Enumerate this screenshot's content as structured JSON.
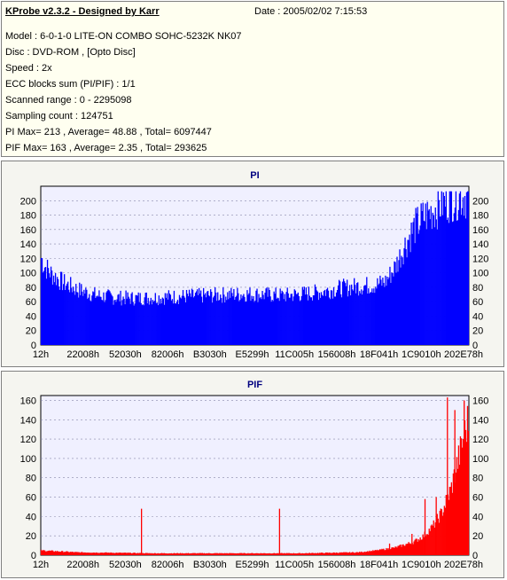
{
  "header": {
    "app_title": "KProbe v2.3.2 - Designed by Karr",
    "date": "Date : 2005/02/02 7:15:53",
    "lines": [
      "Model : 6-0-1-0 LITE-ON COMBO SOHC-5232K NK07",
      "Disc : DVD-ROM ,  [Opto Disc]",
      "Speed : 2x",
      "ECC blocks sum (PI/PIF) : 1/1",
      "Scanned range : 0 - 2295098",
      "Sampling count : 124751",
      "PI Max= 213 , Average= 48.88 , Total= 6097447",
      "PIF Max= 163 , Average= 2.35 , Total= 293625"
    ]
  },
  "chart_data": [
    {
      "type": "area",
      "title": "PI",
      "color": "#0000ff",
      "ylim": [
        0,
        220
      ],
      "yticks": [
        0,
        20,
        40,
        60,
        80,
        100,
        120,
        140,
        160,
        180,
        200
      ],
      "xticks": [
        "12h",
        "22008h",
        "52030h",
        "82006h",
        "B3030h",
        "E5299h",
        "11C005h",
        "156008h",
        "18F041h",
        "1C9010h",
        "202E78h"
      ],
      "xlim": [
        0,
        2295098
      ],
      "profile": [
        [
          0,
          125
        ],
        [
          20000,
          112
        ],
        [
          60000,
          100
        ],
        [
          120000,
          88
        ],
        [
          200000,
          78
        ],
        [
          300000,
          70
        ],
        [
          400000,
          67
        ],
        [
          500000,
          66
        ],
        [
          600000,
          67
        ],
        [
          700000,
          68
        ],
        [
          800000,
          69
        ],
        [
          900000,
          70
        ],
        [
          1000000,
          71
        ],
        [
          1100000,
          72
        ],
        [
          1200000,
          71
        ],
        [
          1300000,
          70
        ],
        [
          1400000,
          72
        ],
        [
          1500000,
          75
        ],
        [
          1600000,
          80
        ],
        [
          1700000,
          83
        ],
        [
          1800000,
          85
        ],
        [
          1850000,
          90
        ],
        [
          1900000,
          110
        ],
        [
          1950000,
          140
        ],
        [
          2000000,
          165
        ],
        [
          2050000,
          180
        ],
        [
          2100000,
          190
        ],
        [
          2150000,
          200
        ],
        [
          2200000,
          207
        ],
        [
          2250000,
          210
        ],
        [
          2295098,
          212
        ]
      ],
      "max": 213
    },
    {
      "type": "area",
      "title": "PIF",
      "color": "#ff0000",
      "ylim": [
        0,
        165
      ],
      "yticks": [
        0,
        20,
        40,
        60,
        80,
        100,
        120,
        140,
        160
      ],
      "xticks": [
        "12h",
        "22008h",
        "52030h",
        "82006h",
        "B3030h",
        "E5299h",
        "11C005h",
        "156008h",
        "18F041h",
        "1C9010h",
        "202E78h"
      ],
      "xlim": [
        0,
        2295098
      ],
      "profile": [
        [
          0,
          5
        ],
        [
          200000,
          3
        ],
        [
          600000,
          2
        ],
        [
          1000000,
          2
        ],
        [
          1400000,
          2
        ],
        [
          1700000,
          3
        ],
        [
          1800000,
          5
        ],
        [
          1900000,
          8
        ],
        [
          2000000,
          14
        ],
        [
          2050000,
          20
        ],
        [
          2100000,
          30
        ],
        [
          2150000,
          45
        ],
        [
          2200000,
          70
        ],
        [
          2250000,
          110
        ],
        [
          2295098,
          145
        ]
      ],
      "spikes": [
        [
          540000,
          48
        ],
        [
          1280000,
          48
        ],
        [
          1870000,
          12
        ],
        [
          1990000,
          22
        ],
        [
          2060000,
          58
        ],
        [
          2120000,
          60
        ],
        [
          2180000,
          163
        ],
        [
          2220000,
          150
        ],
        [
          2270000,
          160
        ]
      ],
      "max": 163
    }
  ]
}
